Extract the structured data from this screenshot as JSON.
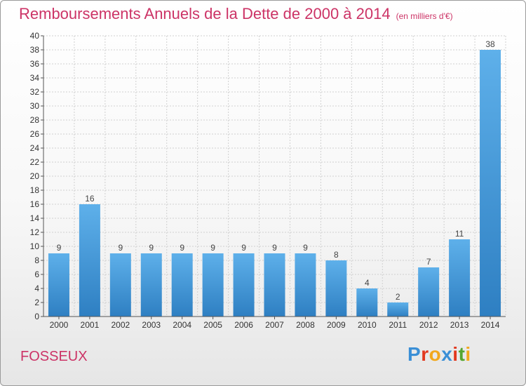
{
  "title": {
    "main": "Remboursements Annuels de la Dette de 2000 à 2014",
    "unit": "(en milliers d'€)"
  },
  "commune": "FOSSEUX",
  "logo": {
    "text": "Proxiti",
    "letters": [
      {
        "ch": "P",
        "color": "#3a8fd6"
      },
      {
        "ch": "r",
        "color": "#e2381f"
      },
      {
        "ch": "o",
        "color": "#f2a81d"
      },
      {
        "ch": "x",
        "color": "#3a8fd6"
      },
      {
        "ch": "i",
        "color": "#e2381f"
      },
      {
        "ch": "t",
        "color": "#55a630"
      },
      {
        "ch": "i",
        "color": "#f2a81d"
      }
    ]
  },
  "colors": {
    "accent": "#cc3366",
    "bar_light": "#5eb0ea",
    "bar_dark": "#2e7fc2",
    "grid": "#d0d0d0",
    "axis": "#555555"
  },
  "chart_data": {
    "type": "bar",
    "categories": [
      "2000",
      "2001",
      "2002",
      "2003",
      "2004",
      "2005",
      "2006",
      "2007",
      "2008",
      "2009",
      "2010",
      "2011",
      "2012",
      "2013",
      "2014"
    ],
    "values": [
      9,
      16,
      9,
      9,
      9,
      9,
      9,
      9,
      9,
      8,
      4,
      2,
      7,
      11,
      38
    ],
    "title": "Remboursements Annuels de la Dette de 2000 à 2014",
    "xlabel": "",
    "ylabel": "",
    "ylim": [
      0,
      40
    ],
    "yticks": [
      0,
      2,
      4,
      6,
      8,
      10,
      12,
      14,
      16,
      18,
      20,
      22,
      24,
      26,
      28,
      30,
      32,
      34,
      36,
      38,
      40
    ],
    "grid": true,
    "data_labels": true
  }
}
